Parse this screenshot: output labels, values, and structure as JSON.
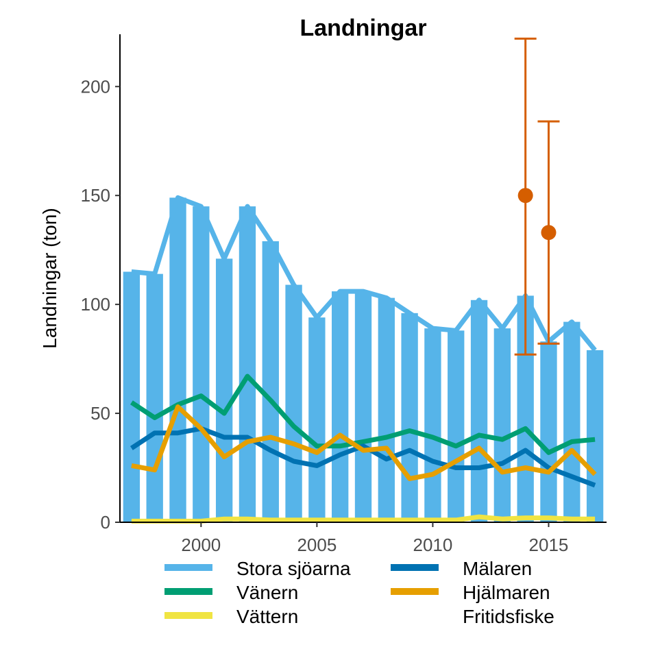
{
  "chart_data": {
    "type": "bar",
    "title": "Landningar",
    "xlabel": "",
    "ylabel": "Landningar (ton)",
    "xlim": [
      1996.5,
      2017.5
    ],
    "ylim": [
      0,
      200
    ],
    "y_domain": [
      0,
      224
    ],
    "xticks": [
      2000,
      2005,
      2010,
      2015
    ],
    "yticks": [
      0,
      50,
      100,
      150,
      200
    ],
    "grid": false,
    "legend_position": "bottom",
    "x": [
      1997,
      1998,
      1999,
      2000,
      2001,
      2002,
      2003,
      2004,
      2005,
      2006,
      2007,
      2008,
      2009,
      2010,
      2011,
      2012,
      2013,
      2014,
      2015,
      2016,
      2017
    ],
    "series": [
      {
        "name": "Stora sjöarna",
        "kind": "bar+line",
        "color": "#56B4E9",
        "values": [
          115,
          114,
          149,
          145,
          121,
          145,
          129,
          109,
          94,
          106,
          106,
          103,
          96,
          89,
          88,
          102,
          89,
          104,
          83,
          92,
          79
        ]
      },
      {
        "name": "Vänern",
        "kind": "line",
        "color": "#009E73",
        "values": [
          55,
          48,
          54,
          58,
          50,
          67,
          56,
          44,
          35,
          35,
          37,
          39,
          42,
          39,
          35,
          40,
          38,
          43,
          32,
          37,
          38
        ]
      },
      {
        "name": "Vättern",
        "kind": "line",
        "color": "#F0E442",
        "values": [
          0.5,
          0.5,
          0.5,
          0.5,
          1.5,
          1.5,
          1.0,
          1.0,
          1.0,
          1.0,
          1.0,
          1.0,
          1.0,
          1.0,
          1.0,
          2.5,
          1.5,
          2.0,
          2.0,
          1.5,
          1.5
        ]
      },
      {
        "name": "Mälaren",
        "kind": "line",
        "color": "#0072B2",
        "values": [
          34,
          41,
          41,
          43,
          39,
          39,
          33,
          28,
          26,
          31,
          35,
          29,
          33,
          28,
          25,
          25,
          27,
          33,
          25,
          21,
          17
        ]
      },
      {
        "name": "Hjälmaren",
        "kind": "line",
        "color": "#E69F00",
        "values": [
          26,
          24,
          53,
          43,
          30,
          37,
          39,
          36,
          32,
          40,
          33,
          34,
          20,
          22,
          28,
          34,
          23,
          25,
          23,
          33,
          22
        ]
      },
      {
        "name": "Fritidsfiske",
        "kind": "point+errorbar",
        "color": "#D55E00",
        "points": [
          {
            "x": 2014,
            "y": 150,
            "low": 77,
            "high": 222
          },
          {
            "x": 2015,
            "y": 133,
            "low": 82,
            "high": 184
          }
        ]
      }
    ]
  }
}
